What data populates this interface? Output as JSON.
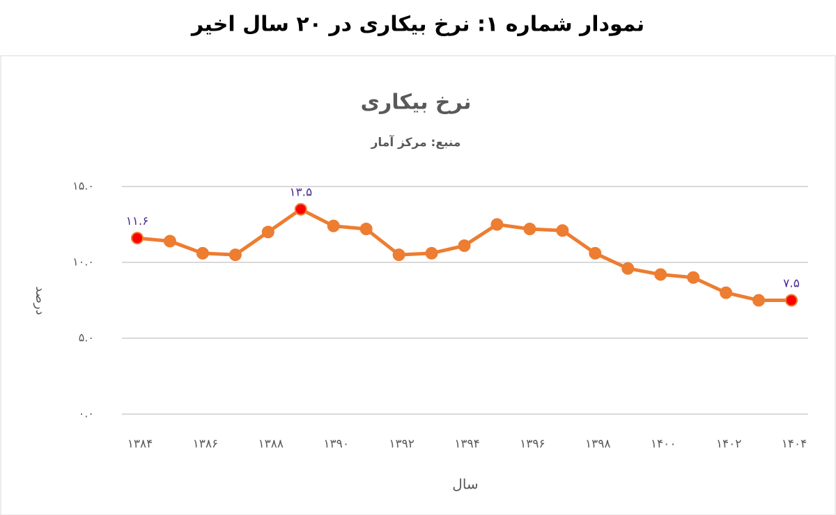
{
  "header": {
    "title": "نمودار شماره ۱: نرخ بیکاری در ۲۰ سال اخیر"
  },
  "chart_data": {
    "type": "line",
    "title": "نرخ بیکاری",
    "subtitle": "منبع: مرکز آمار",
    "y_label": "درصد",
    "x_label": "سال",
    "categories": [
      "۱۳۸۴",
      null,
      "۱۳۸۶",
      null,
      "۱۳۸۸",
      null,
      "۱۳۹۰",
      null,
      "۱۳۹۲",
      null,
      "۱۳۹۴",
      null,
      "۱۳۹۶",
      null,
      "۱۳۹۸",
      null,
      "۱۴۰۰",
      null,
      "۱۴۰۲",
      null,
      "۱۴۰۴"
    ],
    "values": [
      11.6,
      11.4,
      10.6,
      10.5,
      12.0,
      13.5,
      12.4,
      12.2,
      10.5,
      10.6,
      11.1,
      12.5,
      12.2,
      12.1,
      10.6,
      9.6,
      9.2,
      9.0,
      8.0,
      7.5,
      7.5
    ],
    "value_labels": [
      "۱۱.۶",
      null,
      null,
      null,
      null,
      "۱۳.۵",
      null,
      null,
      null,
      null,
      null,
      null,
      null,
      null,
      null,
      null,
      null,
      null,
      null,
      null,
      "۷.۵"
    ],
    "color": "#ed7d31",
    "highlight_color": "#ff0000",
    "ylim": [
      0,
      15
    ],
    "yticks": [
      {
        "value": 0,
        "label": "۰.۰"
      },
      {
        "value": 5,
        "label": "۵.۰"
      },
      {
        "value": 10,
        "label": "۱۰.۰"
      },
      {
        "value": 15,
        "label": "۱۵.۰"
      }
    ],
    "grid": true
  }
}
